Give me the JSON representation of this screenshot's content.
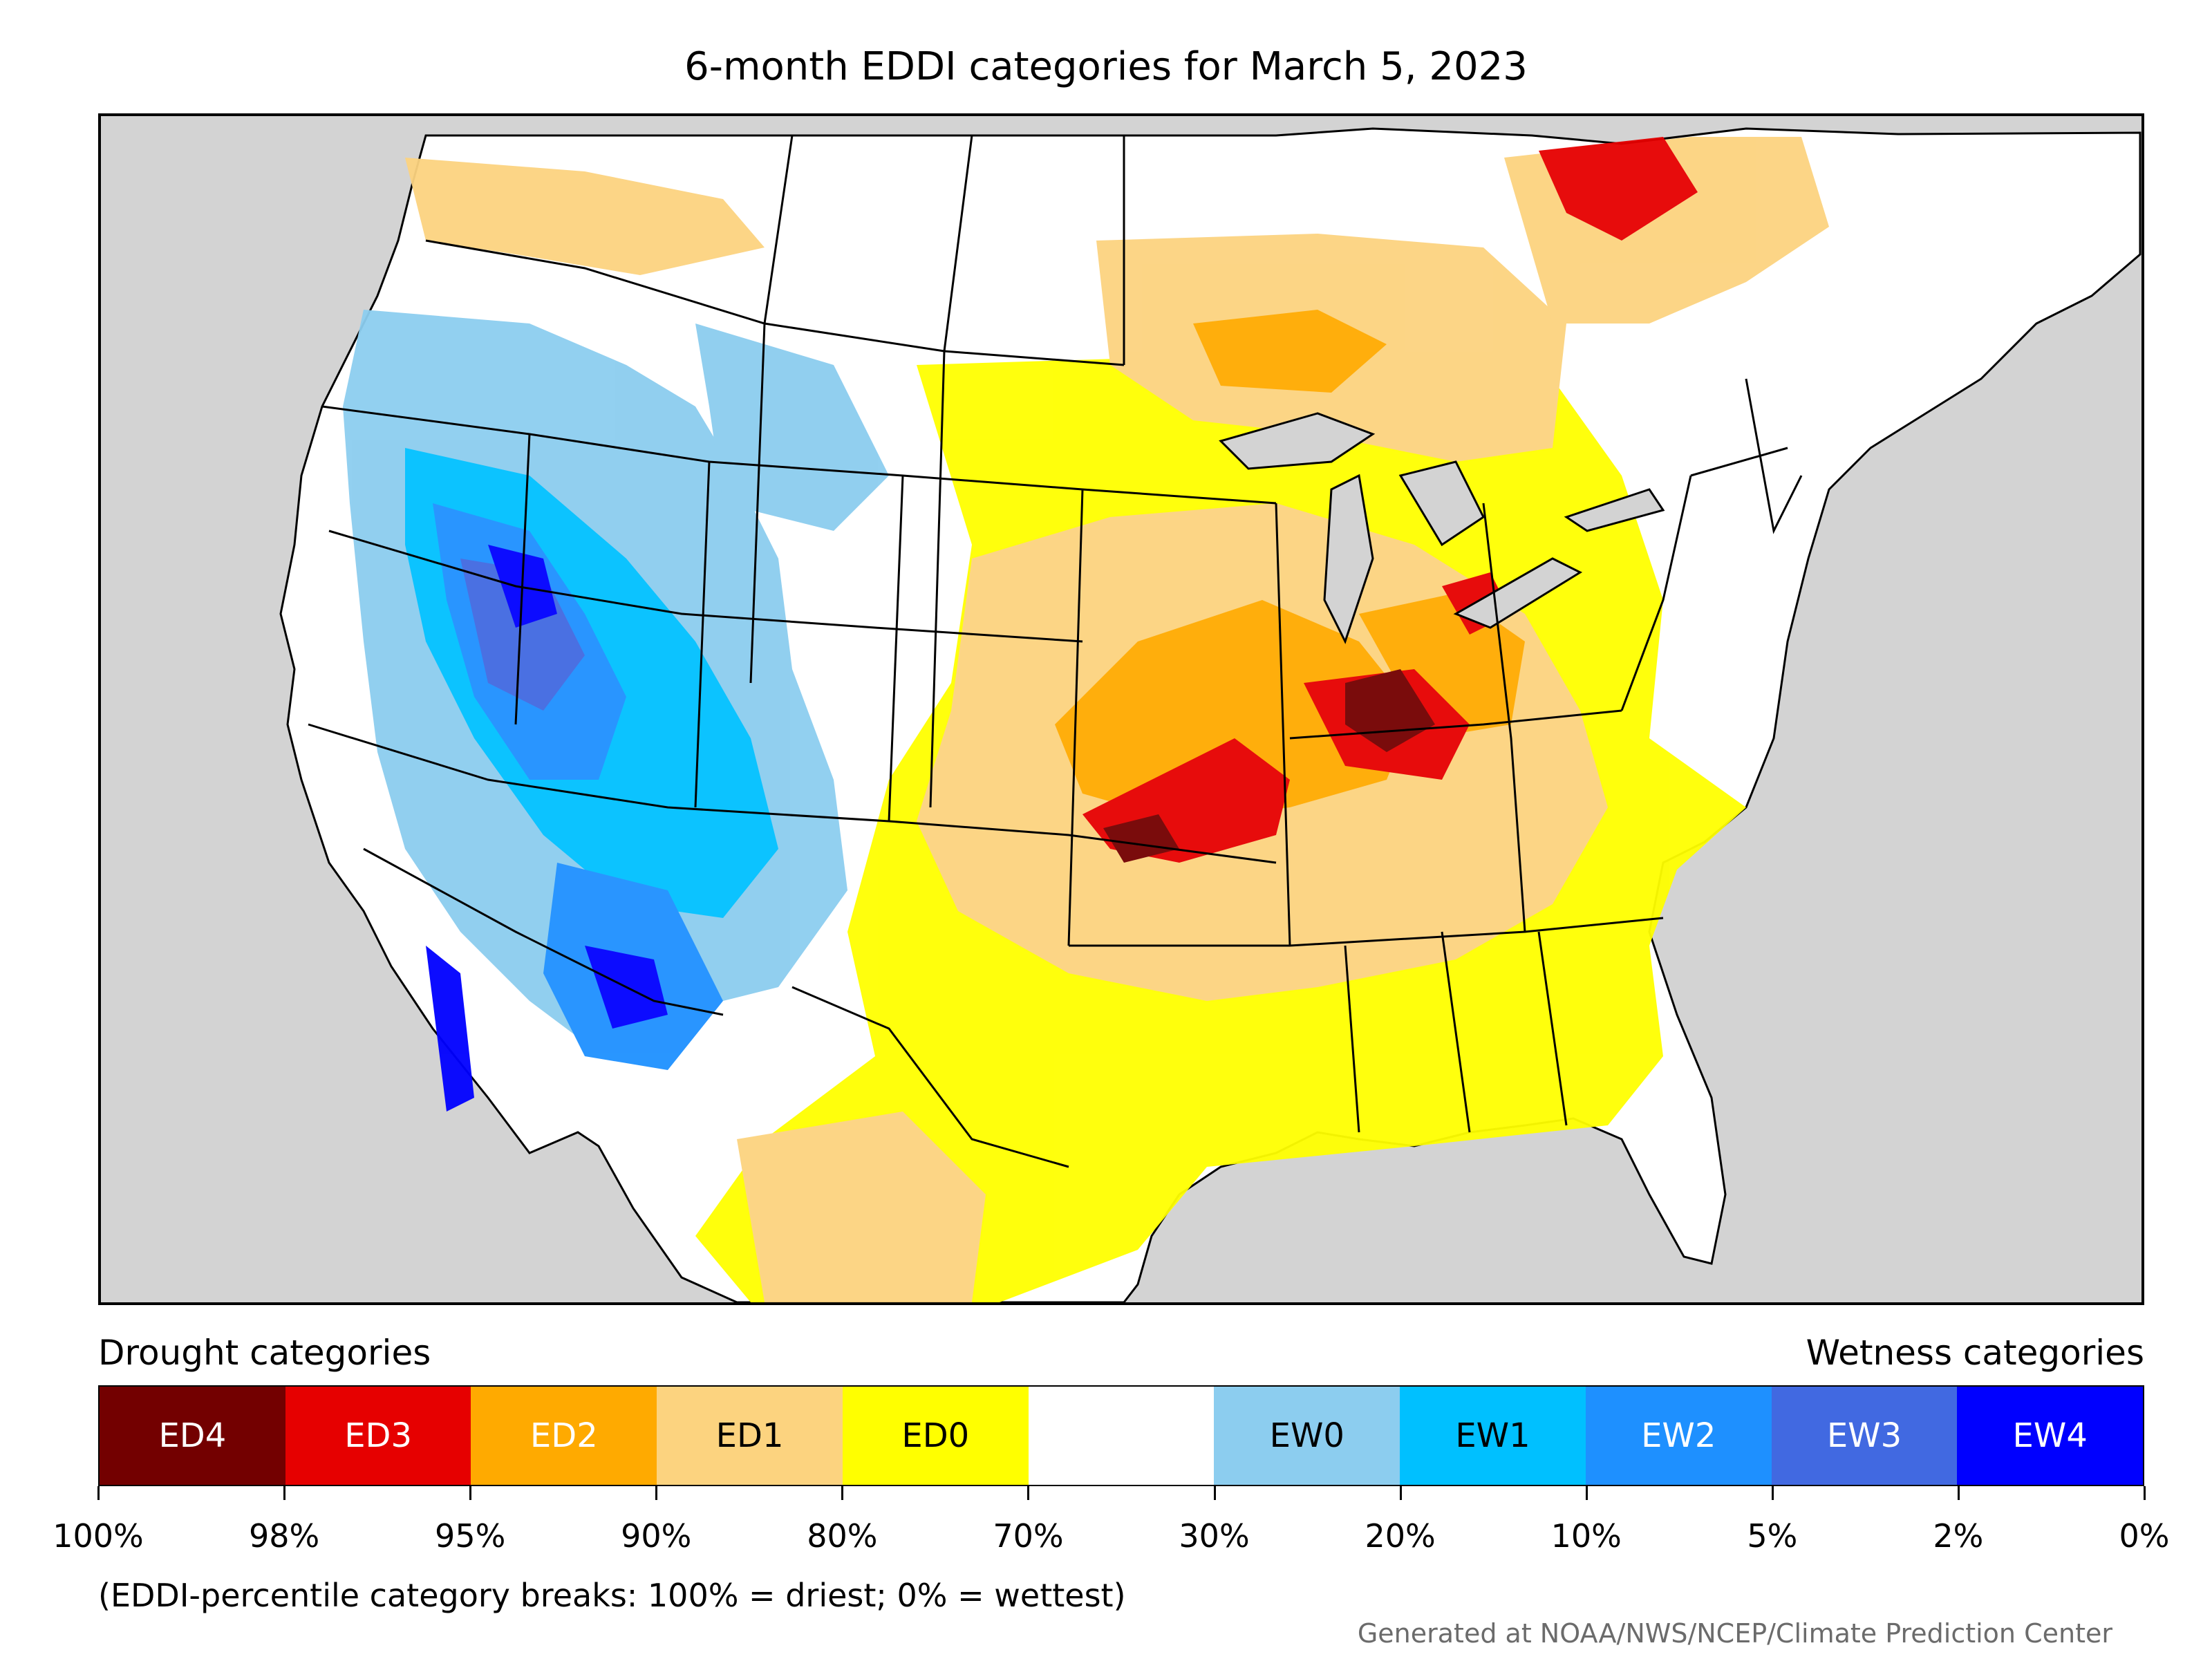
{
  "title": "6-month EDDI categories for March 5, 2023",
  "drought_heading": "Drought categories",
  "wetness_heading": "Wetness categories",
  "legend": [
    {
      "label": "ED4",
      "color": "#730000",
      "text_color": "#ffffff"
    },
    {
      "label": "ED3",
      "color": "#e60000",
      "text_color": "#ffffff"
    },
    {
      "label": "ED2",
      "color": "#ffaa00",
      "text_color": "#ffffff"
    },
    {
      "label": "ED1",
      "color": "#fcd37f",
      "text_color": "#000000"
    },
    {
      "label": "ED0",
      "color": "#ffff00",
      "text_color": "#000000"
    },
    {
      "label": "",
      "color": "#ffffff",
      "text_color": "#000000"
    },
    {
      "label": "EW0",
      "color": "#8ccdef",
      "text_color": "#000000"
    },
    {
      "label": "EW1",
      "color": "#00c0ff",
      "text_color": "#000000"
    },
    {
      "label": "EW2",
      "color": "#1e90ff",
      "text_color": "#ffffff"
    },
    {
      "label": "EW3",
      "color": "#4169e1",
      "text_color": "#ffffff"
    },
    {
      "label": "EW4",
      "color": "#0000ff",
      "text_color": "#ffffff"
    }
  ],
  "ticks": [
    "100%",
    "98%",
    "95%",
    "90%",
    "80%",
    "70%",
    "30%",
    "20%",
    "10%",
    "5%",
    "2%",
    "0%"
  ],
  "note": "(EDDI-percentile category breaks: 100% = driest; 0% = wettest)",
  "credit": "Generated at NOAA/NWS/NCEP/Climate Prediction Center",
  "map_colors": {
    "ocean": "#d3d3d3",
    "land": "#ffffff",
    "boundary": "#000000"
  }
}
